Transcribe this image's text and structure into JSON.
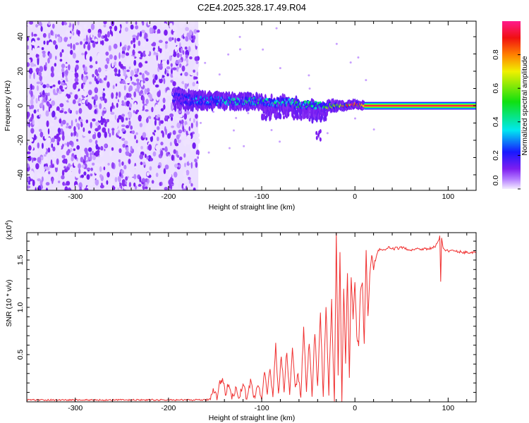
{
  "title": "C2E4.2025.328.17.49.R04",
  "chart_data": [
    {
      "type": "heatmap",
      "xlabel": "Height of straight line (km)",
      "ylabel": "Frequency (Hz)",
      "xlim": [
        -352,
        130
      ],
      "ylim": [
        -49,
        49
      ],
      "xticks": [
        -300,
        -200,
        -100,
        0,
        100
      ],
      "xtick_labels": [
        "-300",
        "-200",
        "-100",
        "0",
        "100"
      ],
      "yticks": [
        -40,
        -20,
        0,
        20,
        40
      ],
      "ytick_labels": [
        "-40",
        "-20",
        "0",
        "20",
        "40"
      ],
      "colorbar": {
        "label": "Normalized spectral amplitude",
        "range": [
          0,
          1
        ],
        "ticks": [
          0.0,
          0.2,
          0.4,
          0.6,
          0.8
        ],
        "tick_labels": [
          "0.0",
          "0.2",
          "0.4",
          "0.6",
          "0.8"
        ]
      },
      "noise_region_x": [
        -352,
        -168
      ],
      "noise_amplitude": 0.1,
      "signal_track": {
        "x": [
          -195,
          -170,
          -150,
          -130,
          -110,
          -90,
          -70,
          -50,
          -35,
          -20,
          -10,
          0,
          10
        ],
        "freq": [
          4,
          3,
          3,
          2.5,
          2.5,
          2,
          1.5,
          0.5,
          0,
          0,
          0,
          1,
          0
        ],
        "spread_hz": [
          8,
          7,
          6,
          6,
          6,
          6,
          6,
          6,
          5,
          3,
          2,
          2,
          2
        ],
        "amplitude": [
          0.1,
          0.3,
          0.35,
          0.4,
          0.4,
          0.42,
          0.45,
          0.45,
          0.5,
          0.7,
          0.85,
          0.9,
          0.9
        ]
      },
      "carrier_band": {
        "x": [
          10,
          130
        ],
        "freq": 0,
        "amplitude": 0.95
      }
    },
    {
      "type": "line",
      "xlabel": "Height of straight line (km)",
      "ylabel": "SNR (10 * v/v)",
      "y_multiplier": "(x10",
      "y_multiplier_exp": "4",
      "xlim": [
        -352,
        130
      ],
      "ylim": [
        0,
        1.79
      ],
      "xticks": [
        -300,
        -200,
        -100,
        0,
        100
      ],
      "xtick_labels": [
        "-300",
        "-200",
        "-100",
        "0",
        "100"
      ],
      "yticks": [
        0.5,
        1.0,
        1.5
      ],
      "ytick_labels": [
        "0.5",
        "1.0",
        "1.5"
      ],
      "color": "#f03030",
      "series": [
        {
          "name": "SNR",
          "x": [
            -352,
            -340,
            -320,
            -300,
            -280,
            -260,
            -240,
            -220,
            -200,
            -180,
            -160,
            -155,
            -152,
            -148,
            -145,
            -142,
            -139,
            -136,
            -132,
            -128,
            -124,
            -120,
            -116,
            -112,
            -108,
            -104,
            -100,
            -97,
            -94,
            -91,
            -88,
            -85,
            -82,
            -79,
            -76,
            -73,
            -70,
            -67,
            -64,
            -61,
            -58,
            -55,
            -52,
            -49,
            -46,
            -43,
            -40,
            -37,
            -34,
            -31,
            -28,
            -25,
            -22,
            -20,
            -18,
            -16,
            -14,
            -12,
            -10,
            -8,
            -6,
            -4,
            -2,
            0,
            2,
            4,
            6,
            8,
            10,
            12,
            14,
            16,
            18,
            20,
            22,
            25,
            28,
            32,
            36,
            40,
            50,
            60,
            70,
            80,
            86,
            89,
            91,
            92,
            93,
            95,
            100,
            110,
            120,
            130
          ],
          "y": [
            0.02,
            0.02,
            0.02,
            0.02,
            0.02,
            0.02,
            0.02,
            0.02,
            0.02,
            0.02,
            0.02,
            0.03,
            0.15,
            0.05,
            0.2,
            0.26,
            0.08,
            0.18,
            0.03,
            0.15,
            0.04,
            0.2,
            0.03,
            0.22,
            0.05,
            0.18,
            0.02,
            0.3,
            0.08,
            0.35,
            0.05,
            0.61,
            0.08,
            0.5,
            0.1,
            0.55,
            0.06,
            0.6,
            0.12,
            0.3,
            0.05,
            0.79,
            0.1,
            0.65,
            0.08,
            0.75,
            0.15,
            0.92,
            0.05,
            1.0,
            0.1,
            1.05,
            0.0,
            1.78,
            0.3,
            1.57,
            0.0,
            1.2,
            0.4,
            1.38,
            0.25,
            1.3,
            0.9,
            1.28,
            0.7,
            0.62,
            1.2,
            1.3,
            0.6,
            1.6,
            0.9,
            1.35,
            1.55,
            1.4,
            1.5,
            1.6,
            1.62,
            1.6,
            1.63,
            1.62,
            1.63,
            1.61,
            1.62,
            1.62,
            1.64,
            1.68,
            1.76,
            1.28,
            1.72,
            1.62,
            1.6,
            1.59,
            1.58,
            1.58
          ]
        }
      ]
    }
  ]
}
